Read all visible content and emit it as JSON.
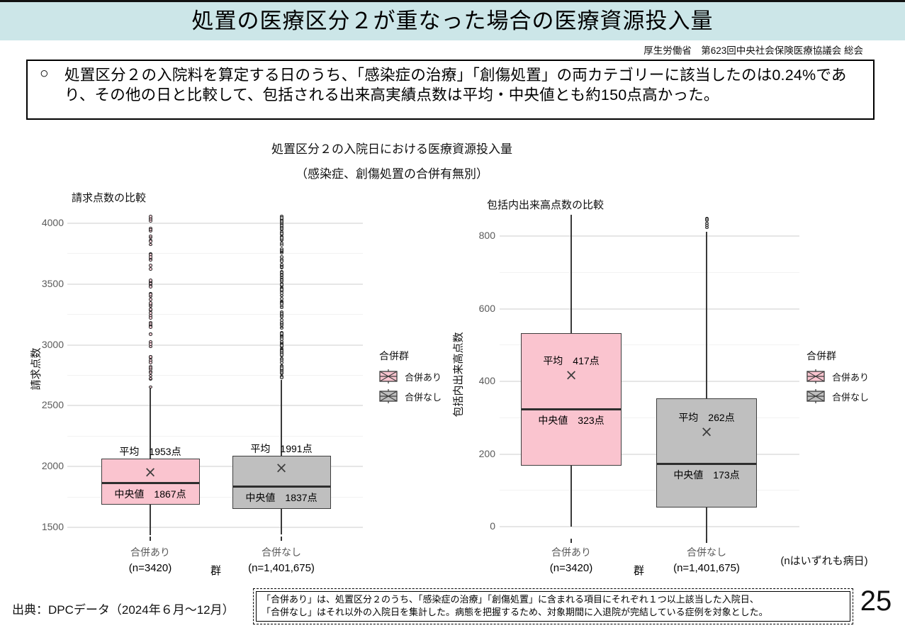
{
  "slide": {
    "title": "処置の医療区分２が重なった場合の医療資源投入量",
    "credit": "厚生労働省　第623回中央社会保険医療協議会 総会",
    "lead_marker": "○",
    "lead_text": "処置区分２の入院料を算定する日のうち、「感染症の治療」「創傷処置」の両カテゴリーに該当したのは0.24%であり、その他の日と比較して、包括される出来高実績点数は平均・中央値とも約150点高かった。",
    "n_note": "(nはいずれも病日)",
    "source": "出典：DPCデータ（2024年６月～12月）",
    "note_line1": "「合併あり」は、処置区分２のうち、「感染症の治療」「創傷処置」に含まれる項目にそれぞれ１つ以上該当した入院日、",
    "note_line2": "「合併なし」はそれ以外の入院日を集計した。病態を把握するため、対象期間に入退院が完結している症例を対象とした。",
    "page_number": "25"
  },
  "figure": {
    "title": "処置区分２の入院日における医療資源投入量",
    "subtitle": "（感染症、創傷処置の合併有無別）"
  },
  "legend": {
    "title": "合併群",
    "items": [
      {
        "label": "合併あり",
        "color": "#fac4cf"
      },
      {
        "label": "合併なし",
        "color": "#bfbfbf"
      }
    ]
  },
  "colors": {
    "header_band": "#cce6e8",
    "box_with": "#fac4cf",
    "box_without": "#bfbfbf",
    "box_border": "#3e3e3e",
    "gridline": "#e6e6e6"
  },
  "chart_data": [
    {
      "type": "boxplot",
      "title": "請求点数の比較",
      "ylabel": "請求点数",
      "xlabel": "群",
      "ylim": [
        1425,
        4070
      ],
      "yticks": [
        1500,
        2000,
        2500,
        3000,
        3500,
        4000
      ],
      "yticks_minor": [
        1750,
        2250,
        2750,
        3250,
        3750
      ],
      "grid": true,
      "series": [
        {
          "name": "合併あり",
          "n_label": "(n=3420)",
          "color": "#fac4cf",
          "mean": 1953,
          "median": 1867,
          "q1": 1685,
          "q3": 2065,
          "whisker_low": 1435,
          "whisker_high": 2640,
          "mean_label": "平均　1953点",
          "median_label": "中央値　1867点",
          "outliers": {
            "min": 2650,
            "max": 4060,
            "count": 68,
            "seed": 7,
            "dot_color": "#f5cdd6"
          }
        },
        {
          "name": "合併なし",
          "n_label": "(n=1,401,675)",
          "color": "#bfbfbf",
          "mean": 1991,
          "median": 1837,
          "q1": 1650,
          "q3": 2090,
          "whisker_low": 1440,
          "whisker_high": 2715,
          "mean_label": "平均　1991点",
          "median_label": "中央値　1837点",
          "outliers": {
            "min": 2725,
            "max": 4060,
            "count": 150,
            "seed": 13,
            "dot_color": "#c9c9c9"
          }
        }
      ]
    },
    {
      "type": "boxplot",
      "title": "包括内出来高点数の比較",
      "ylabel": "包括内出来高点数",
      "xlabel": "群",
      "ylim": [
        -35,
        860
      ],
      "yticks": [
        0,
        200,
        400,
        600,
        800
      ],
      "yticks_minor": [
        100,
        300,
        500,
        700
      ],
      "grid": true,
      "series": [
        {
          "name": "合併あり",
          "n_label": "(n=3420)",
          "color": "#fac4cf",
          "mean": 417,
          "median": 323,
          "q1": 168,
          "q3": 532,
          "whisker_low": 0,
          "whisker_high": 862,
          "mean_label": "平均　417点",
          "median_label": "中央値　323点",
          "outliers": null
        },
        {
          "name": "合併なし",
          "n_label": "(n=1,401,675)",
          "color": "#bfbfbf",
          "mean": 262,
          "median": 173,
          "q1": 52,
          "q3": 353,
          "whisker_low": -35,
          "whisker_high": 812,
          "mean_label": "平均　262点",
          "median_label": "中央値　173点",
          "outliers": {
            "min": 815,
            "max": 852,
            "count": 6,
            "seed": 3,
            "dot_color": "#c9c9c9"
          }
        }
      ]
    }
  ]
}
